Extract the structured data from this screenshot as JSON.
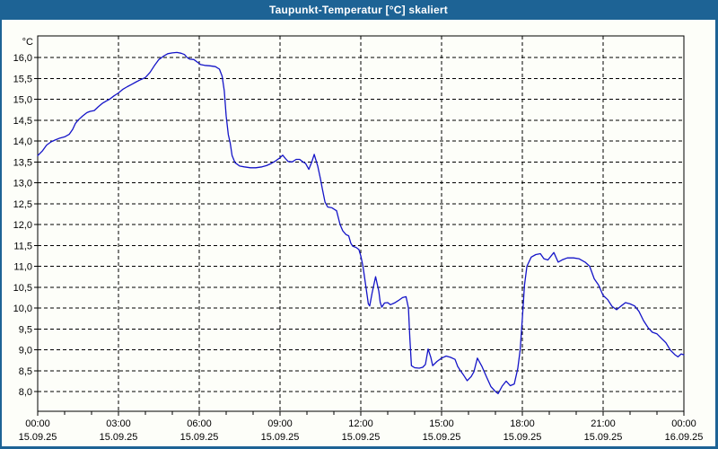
{
  "window": {
    "title": "Taupunkt-Temperatur [°C] skaliert"
  },
  "colors": {
    "titlebar_bg": "#1D6395",
    "titlebar_text": "#FFFFFF",
    "window_bg": "#FDFEF9",
    "border": "#1D6395",
    "line": "#1414C8",
    "grid": "#000000",
    "text": "#000000"
  },
  "chart_data": {
    "type": "line",
    "title": "Taupunkt-Temperatur [°C] skaliert",
    "ylabel": "°C",
    "xlabel": "",
    "grid": "dashed",
    "legend": "none",
    "ylim": [
      7.5,
      16.5
    ],
    "xlim": [
      0,
      24
    ],
    "yticks": {
      "min": 8.0,
      "max": 16.0,
      "step": 0.5,
      "decimal_separator": ","
    },
    "x_minor_step_hours": 1,
    "xticks": [
      {
        "hour": 0,
        "time": "00:00",
        "date": "15.09.25"
      },
      {
        "hour": 3,
        "time": "03:00",
        "date": "15.09.25"
      },
      {
        "hour": 6,
        "time": "06:00",
        "date": "15.09.25"
      },
      {
        "hour": 9,
        "time": "09:00",
        "date": "15.09.25"
      },
      {
        "hour": 12,
        "time": "12:00",
        "date": "15.09.25"
      },
      {
        "hour": 15,
        "time": "15:00",
        "date": "15.09.25"
      },
      {
        "hour": 18,
        "time": "18:00",
        "date": "15.09.25"
      },
      {
        "hour": 21,
        "time": "21:00",
        "date": "15.09.25"
      },
      {
        "hour": 24,
        "time": "00:00",
        "date": "16.09.25"
      }
    ],
    "series": [
      {
        "name": "Taupunkt-Temperatur",
        "points": [
          [
            0,
            13.65
          ],
          [
            0.17,
            13.76
          ],
          [
            0.33,
            13.9
          ],
          [
            0.5,
            13.98
          ],
          [
            0.67,
            14.03
          ],
          [
            0.83,
            14.07
          ],
          [
            1,
            14.1
          ],
          [
            1.17,
            14.16
          ],
          [
            1.3,
            14.28
          ],
          [
            1.4,
            14.42
          ],
          [
            1.5,
            14.5
          ],
          [
            1.67,
            14.6
          ],
          [
            1.83,
            14.68
          ],
          [
            1.95,
            14.71
          ],
          [
            2.1,
            14.73
          ],
          [
            2.25,
            14.82
          ],
          [
            2.4,
            14.9
          ],
          [
            2.55,
            14.96
          ],
          [
            2.67,
            15
          ],
          [
            2.83,
            15.08
          ],
          [
            3,
            15.15
          ],
          [
            3.17,
            15.24
          ],
          [
            3.33,
            15.3
          ],
          [
            3.5,
            15.36
          ],
          [
            3.67,
            15.42
          ],
          [
            3.83,
            15.47
          ],
          [
            4,
            15.52
          ],
          [
            4.17,
            15.64
          ],
          [
            4.33,
            15.8
          ],
          [
            4.5,
            15.95
          ],
          [
            4.67,
            16.03
          ],
          [
            4.83,
            16.09
          ],
          [
            5,
            16.11
          ],
          [
            5.17,
            16.12
          ],
          [
            5.33,
            16.1
          ],
          [
            5.45,
            16.07
          ],
          [
            5.55,
            16
          ],
          [
            5.65,
            15.96
          ],
          [
            5.8,
            15.95
          ],
          [
            5.95,
            15.88
          ],
          [
            6.05,
            15.83
          ],
          [
            6.2,
            15.81
          ],
          [
            6.4,
            15.8
          ],
          [
            6.6,
            15.78
          ],
          [
            6.75,
            15.72
          ],
          [
            6.85,
            15.55
          ],
          [
            6.93,
            15.2
          ],
          [
            7,
            14.6
          ],
          [
            7.08,
            14.15
          ],
          [
            7.15,
            13.95
          ],
          [
            7.22,
            13.65
          ],
          [
            7.33,
            13.48
          ],
          [
            7.5,
            13.4
          ],
          [
            7.67,
            13.38
          ],
          [
            7.9,
            13.36
          ],
          [
            8.1,
            13.36
          ],
          [
            8.33,
            13.38
          ],
          [
            8.5,
            13.41
          ],
          [
            8.67,
            13.46
          ],
          [
            8.83,
            13.52
          ],
          [
            9,
            13.6
          ],
          [
            9.1,
            13.66
          ],
          [
            9.2,
            13.58
          ],
          [
            9.3,
            13.51
          ],
          [
            9.45,
            13.5
          ],
          [
            9.6,
            13.56
          ],
          [
            9.73,
            13.56
          ],
          [
            9.85,
            13.5
          ],
          [
            9.95,
            13.46
          ],
          [
            10.07,
            13.32
          ],
          [
            10.18,
            13.5
          ],
          [
            10.27,
            13.68
          ],
          [
            10.4,
            13.4
          ],
          [
            10.5,
            13.1
          ],
          [
            10.57,
            12.86
          ],
          [
            10.67,
            12.54
          ],
          [
            10.77,
            12.42
          ],
          [
            10.93,
            12.4
          ],
          [
            11,
            12.37
          ],
          [
            11.1,
            12.33
          ],
          [
            11.23,
            12
          ],
          [
            11.33,
            11.85
          ],
          [
            11.45,
            11.76
          ],
          [
            11.55,
            11.73
          ],
          [
            11.63,
            11.55
          ],
          [
            11.7,
            11.48
          ],
          [
            11.83,
            11.45
          ],
          [
            11.93,
            11.4
          ],
          [
            12,
            11.25
          ],
          [
            12.08,
            11
          ],
          [
            12.17,
            10.6
          ],
          [
            12.28,
            10.1
          ],
          [
            12.33,
            10.05
          ],
          [
            12.42,
            10.36
          ],
          [
            12.55,
            10.75
          ],
          [
            12.67,
            10.4
          ],
          [
            12.72,
            10.14
          ],
          [
            12.78,
            10.02
          ],
          [
            12.88,
            10.12
          ],
          [
            13,
            10.13
          ],
          [
            13.1,
            10.08
          ],
          [
            13.25,
            10.12
          ],
          [
            13.4,
            10.18
          ],
          [
            13.55,
            10.25
          ],
          [
            13.68,
            10.27
          ],
          [
            13.77,
            10
          ],
          [
            13.82,
            9.3
          ],
          [
            13.88,
            8.62
          ],
          [
            14,
            8.57
          ],
          [
            14.17,
            8.56
          ],
          [
            14.3,
            8.58
          ],
          [
            14.4,
            8.65
          ],
          [
            14.5,
            9.02
          ],
          [
            14.6,
            8.82
          ],
          [
            14.67,
            8.62
          ],
          [
            14.83,
            8.72
          ],
          [
            15,
            8.8
          ],
          [
            15.17,
            8.85
          ],
          [
            15.33,
            8.82
          ],
          [
            15.5,
            8.77
          ],
          [
            15.6,
            8.6
          ],
          [
            15.7,
            8.5
          ],
          [
            15.83,
            8.38
          ],
          [
            15.95,
            8.26
          ],
          [
            16.1,
            8.36
          ],
          [
            16.2,
            8.47
          ],
          [
            16.33,
            8.8
          ],
          [
            16.5,
            8.6
          ],
          [
            16.67,
            8.35
          ],
          [
            16.83,
            8.12
          ],
          [
            17,
            8
          ],
          [
            17.1,
            7.95
          ],
          [
            17.25,
            8.13
          ],
          [
            17.4,
            8.25
          ],
          [
            17.55,
            8.14
          ],
          [
            17.7,
            8.18
          ],
          [
            17.83,
            8.55
          ],
          [
            17.92,
            9
          ],
          [
            18,
            9.75
          ],
          [
            18.08,
            10.55
          ],
          [
            18.17,
            11
          ],
          [
            18.33,
            11.22
          ],
          [
            18.5,
            11.28
          ],
          [
            18.67,
            11.3
          ],
          [
            18.8,
            11.18
          ],
          [
            18.95,
            11.15
          ],
          [
            19.17,
            11.33
          ],
          [
            19.33,
            11.1
          ],
          [
            19.5,
            11.16
          ],
          [
            19.67,
            11.2
          ],
          [
            19.9,
            11.2
          ],
          [
            20.1,
            11.18
          ],
          [
            20.33,
            11.1
          ],
          [
            20.5,
            11
          ],
          [
            20.67,
            10.7
          ],
          [
            20.83,
            10.55
          ],
          [
            21,
            10.3
          ],
          [
            21.17,
            10.2
          ],
          [
            21.33,
            10.04
          ],
          [
            21.5,
            9.96
          ],
          [
            21.67,
            10.05
          ],
          [
            21.83,
            10.13
          ],
          [
            22,
            10.1
          ],
          [
            22.17,
            10.05
          ],
          [
            22.33,
            9.92
          ],
          [
            22.5,
            9.7
          ],
          [
            22.67,
            9.53
          ],
          [
            22.83,
            9.42
          ],
          [
            23,
            9.38
          ],
          [
            23.17,
            9.27
          ],
          [
            23.33,
            9.17
          ],
          [
            23.5,
            8.99
          ],
          [
            23.67,
            8.88
          ],
          [
            23.78,
            8.83
          ],
          [
            23.9,
            8.9
          ],
          [
            24,
            8.88
          ]
        ]
      }
    ]
  }
}
